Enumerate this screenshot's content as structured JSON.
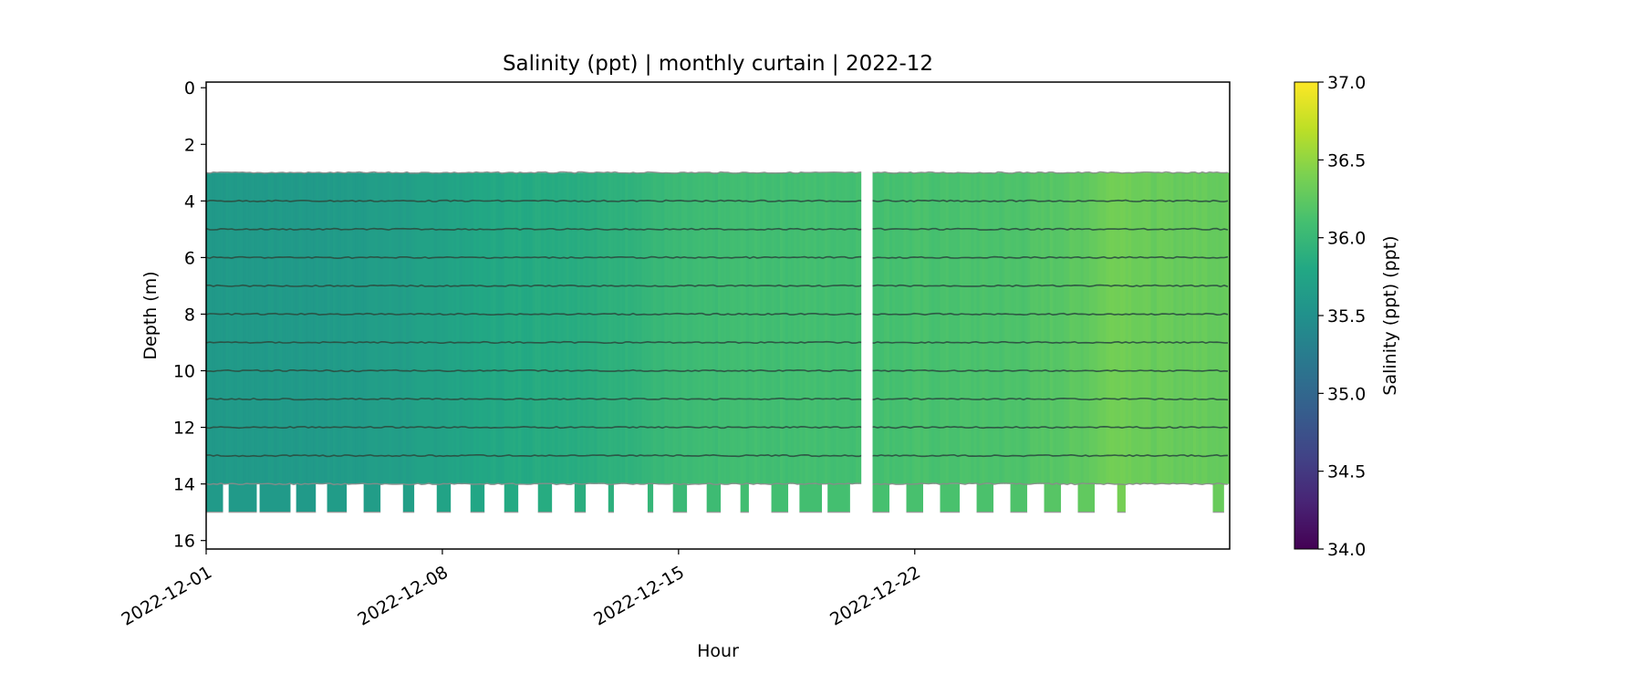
{
  "chart_data": {
    "type": "heatmap",
    "title": "Salinity (ppt) | monthly curtain | 2022-12",
    "xlabel": "Hour",
    "ylabel": "Depth (m)",
    "colorbar_label": "Salinity (ppt) (ppt)",
    "colormap": "viridis",
    "x_range": [
      "2022-12-01",
      "2022-12-31T08:00"
    ],
    "x_ticks": [
      "2022-12-01",
      "2022-12-08",
      "2022-12-15",
      "2022-12-22"
    ],
    "y_range": [
      16.3,
      -0.2
    ],
    "y_ticks": [
      0,
      2,
      4,
      6,
      8,
      10,
      12,
      14,
      16
    ],
    "colorbar_range": [
      34.0,
      37.0
    ],
    "colorbar_ticks": [
      "34.0",
      "34.5",
      "35.0",
      "35.5",
      "36.0",
      "36.5",
      "37.0"
    ],
    "sensor_depths": [
      3,
      4,
      5,
      6,
      7,
      8,
      9,
      10,
      11,
      12,
      13,
      14
    ],
    "bottom_depth": 15,
    "gap": [
      "2022-12-20T10:00",
      "2022-12-20T18:00"
    ],
    "salinity_profile": [
      {
        "date": "2022-12-01",
        "salinity": 35.62
      },
      {
        "date": "2022-12-04",
        "salinity": 35.62
      },
      {
        "date": "2022-12-07",
        "salinity": 35.68
      },
      {
        "date": "2022-12-10",
        "salinity": 35.82
      },
      {
        "date": "2022-12-13",
        "salinity": 35.9
      },
      {
        "date": "2022-12-14T12:00",
        "salinity": 36.0
      },
      {
        "date": "2022-12-17",
        "salinity": 36.08
      },
      {
        "date": "2022-12-20",
        "salinity": 36.1
      },
      {
        "date": "2022-12-22",
        "salinity": 36.12
      },
      {
        "date": "2022-12-25",
        "salinity": 36.15
      },
      {
        "date": "2022-12-27",
        "salinity": 36.25
      },
      {
        "date": "2022-12-28",
        "salinity": 36.38
      },
      {
        "date": "2022-12-29",
        "salinity": 36.3
      },
      {
        "date": "2022-12-31T08:00",
        "salinity": 36.3
      }
    ],
    "bottom_blocks": [
      [
        "2022-12-01T00:00",
        "2022-12-01T12:00"
      ],
      [
        "2022-12-01T16:00",
        "2022-12-02T12:00"
      ],
      [
        "2022-12-02T14:00",
        "2022-12-03T12:00"
      ],
      [
        "2022-12-03T16:00",
        "2022-12-04T06:00"
      ],
      [
        "2022-12-04T14:00",
        "2022-12-05T04:00"
      ],
      [
        "2022-12-05T16:00",
        "2022-12-06T04:00"
      ],
      [
        "2022-12-06T20:00",
        "2022-12-07T04:00"
      ],
      [
        "2022-12-07T20:00",
        "2022-12-08T06:00"
      ],
      [
        "2022-12-08T20:00",
        "2022-12-09T06:00"
      ],
      [
        "2022-12-09T20:00",
        "2022-12-10T06:00"
      ],
      [
        "2022-12-10T20:00",
        "2022-12-11T06:00"
      ],
      [
        "2022-12-11T22:00",
        "2022-12-12T06:00"
      ],
      [
        "2022-12-12T22:00",
        "2022-12-13T02:00"
      ],
      [
        "2022-12-14T02:00",
        "2022-12-14T06:00"
      ],
      [
        "2022-12-14T20:00",
        "2022-12-15T06:00"
      ],
      [
        "2022-12-15T20:00",
        "2022-12-16T06:00"
      ],
      [
        "2022-12-16T20:00",
        "2022-12-17T02:00"
      ],
      [
        "2022-12-17T18:00",
        "2022-12-18T06:00"
      ],
      [
        "2022-12-18T14:00",
        "2022-12-19T06:00"
      ],
      [
        "2022-12-19T10:00",
        "2022-12-20T02:00"
      ],
      [
        "2022-12-20T18:00",
        "2022-12-21T06:00"
      ],
      [
        "2022-12-21T18:00",
        "2022-12-22T06:00"
      ],
      [
        "2022-12-22T18:00",
        "2022-12-23T08:00"
      ],
      [
        "2022-12-23T20:00",
        "2022-12-24T08:00"
      ],
      [
        "2022-12-24T20:00",
        "2022-12-25T08:00"
      ],
      [
        "2022-12-25T20:00",
        "2022-12-26T08:00"
      ],
      [
        "2022-12-26T20:00",
        "2022-12-27T08:00"
      ],
      [
        "2022-12-28T00:00",
        "2022-12-28T06:00"
      ],
      [
        "2022-12-30T20:00",
        "2022-12-31T04:00"
      ]
    ]
  }
}
